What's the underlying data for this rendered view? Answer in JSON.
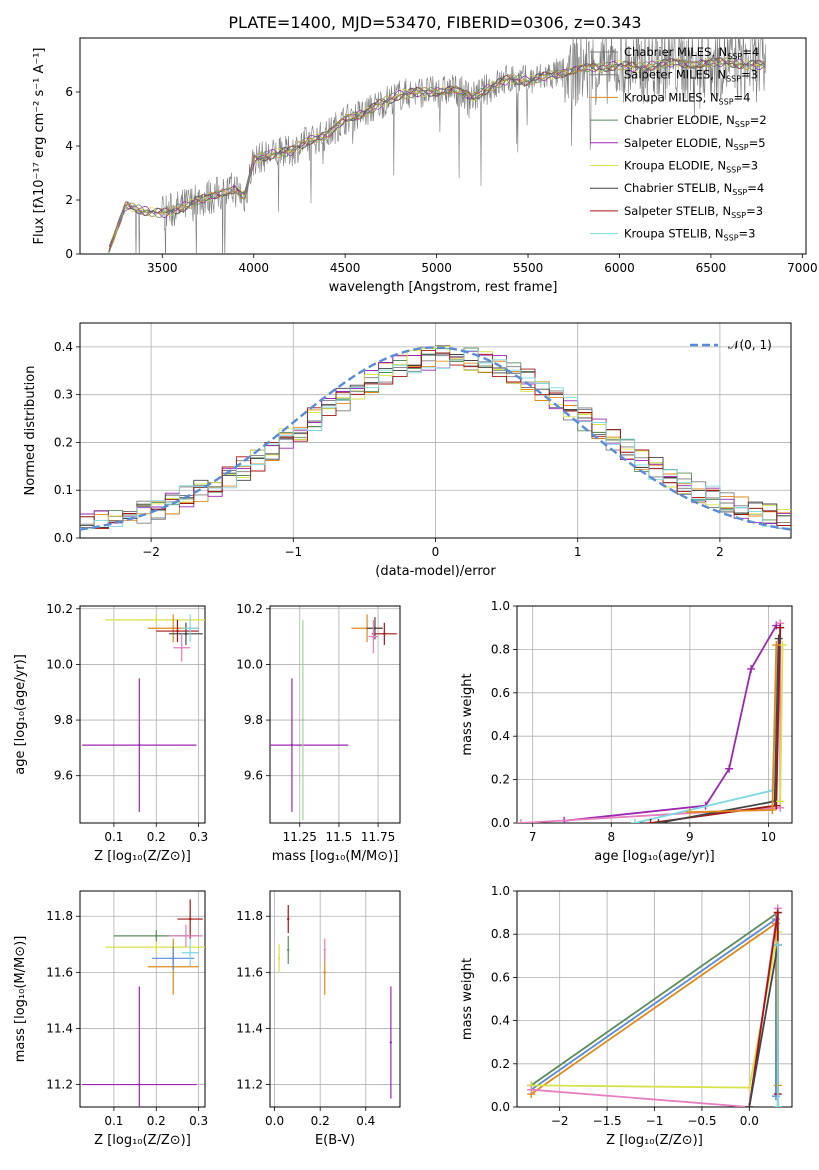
{
  "title": "PLATE=1400, MJD=53470, FIBERID=0306, z=0.343",
  "legend_spectrum": [
    {
      "model": "Chabrier MILES",
      "n": "4",
      "color": "#7b7b7b"
    },
    {
      "model": "Salpeter MILES",
      "n": "3",
      "color": "#7b7b7b"
    },
    {
      "model": "Kroupa MILES",
      "n": "4",
      "color": "#e08a1c"
    },
    {
      "model": "Chabrier ELODIE",
      "n": "2",
      "color": "#5b8c5a"
    },
    {
      "model": "Salpeter ELODIE",
      "n": "5",
      "color": "#9b27b0"
    },
    {
      "model": "Kroupa ELODIE",
      "n": "3",
      "color": "#d8e24a"
    },
    {
      "model": "Chabrier STELIB",
      "n": "4",
      "color": "#444444"
    },
    {
      "model": "Salpeter STELIB",
      "n": "3",
      "color": "#a31515"
    },
    {
      "model": "Kroupa STELIB",
      "n": "3",
      "color": "#7fd8e0"
    }
  ],
  "legend_normal": "𝒩(0, 1)",
  "chart_data": [
    {
      "id": "spectrum",
      "type": "line",
      "xlabel": "wavelength [Angstrom, rest frame]",
      "ylabel": "Flux [fλ10⁻¹⁷ erg cm⁻² s⁻¹ A⁻¹]",
      "xlim": [
        3050,
        7020
      ],
      "ylim": [
        0,
        8
      ],
      "xticks": [
        3500,
        4000,
        4500,
        5000,
        5500,
        6000,
        6500,
        7000
      ],
      "yticks": [
        0,
        2,
        4,
        6
      ],
      "continuum_x": [
        3200,
        3300,
        3400,
        3500,
        3600,
        3700,
        3800,
        3900,
        3950,
        4000,
        4100,
        4200,
        4300,
        4400,
        4500,
        4600,
        4700,
        4800,
        4900,
        5000,
        5100,
        5200,
        5300,
        5400,
        5500,
        5600,
        5700,
        5800,
        5900,
        6000,
        6100,
        6200,
        6300,
        6400,
        6500,
        6600,
        6700,
        6800
      ],
      "continuum_y": [
        0.0,
        1.8,
        1.6,
        1.5,
        1.7,
        2.0,
        2.2,
        2.4,
        2.1,
        3.5,
        3.7,
        3.8,
        4.2,
        4.4,
        5.0,
        5.2,
        5.6,
        5.9,
        6.0,
        6.0,
        6.1,
        5.8,
        6.2,
        6.5,
        6.4,
        6.6,
        6.7,
        6.9,
        6.9,
        7.0,
        6.9,
        7.0,
        7.1,
        7.0,
        7.1,
        7.1,
        7.0,
        7.0
      ]
    },
    {
      "id": "residuals",
      "type": "histogram",
      "xlabel": "(data-model)/error",
      "ylabel": "Normed distribution",
      "xlim": [
        -2.5,
        2.5
      ],
      "ylim": [
        0,
        0.45
      ],
      "xticks": [
        -2,
        -1,
        0,
        1,
        2
      ],
      "yticks": [
        0.0,
        0.1,
        0.2,
        0.3,
        0.4
      ],
      "normal_curve": {
        "mean": 0,
        "sigma": 1,
        "color": "#5b8bd8"
      }
    },
    {
      "id": "age_vs_Z",
      "type": "scatter",
      "xlabel": "Z [log₁₀(Z/Z⊙)]",
      "ylabel": "age  [log₁₀(age/yr)]",
      "xlim": [
        0.02,
        0.315
      ],
      "ylim": [
        9.43,
        10.21
      ],
      "xticks": [
        0.1,
        0.2,
        0.3
      ],
      "yticks": [
        9.6,
        9.8,
        10.0,
        10.2
      ],
      "points": [
        {
          "x": 0.16,
          "y": 9.71,
          "ex": 0.135,
          "ey": 0.24,
          "color": "#9b27b0"
        },
        {
          "x": 0.2,
          "y": 10.16,
          "ex": 0.12,
          "ey": 0.02,
          "color": "#d8e24a"
        },
        {
          "x": 0.24,
          "y": 10.13,
          "ex": 0.06,
          "ey": 0.05,
          "color": "#e08a1c"
        },
        {
          "x": 0.25,
          "y": 10.12,
          "ex": 0.05,
          "ey": 0.04,
          "color": "#a31515"
        },
        {
          "x": 0.27,
          "y": 10.11,
          "ex": 0.04,
          "ey": 0.04,
          "color": "#444444"
        },
        {
          "x": 0.28,
          "y": 10.13,
          "ex": 0.02,
          "ey": 0.05,
          "color": "#7fd8e0"
        },
        {
          "x": 0.26,
          "y": 10.06,
          "ex": 0.02,
          "ey": 0.05,
          "color": "#e67fbf"
        }
      ]
    },
    {
      "id": "age_vs_mass",
      "type": "scatter",
      "xlabel": "mass [log₁₀(M/M⊙)]",
      "ylabel": "",
      "xlim": [
        11.06,
        11.89
      ],
      "ylim": [
        9.43,
        10.21
      ],
      "xticks": [
        11.25,
        11.5,
        11.75
      ],
      "yticks": [
        9.6,
        9.8,
        10.0,
        10.2
      ],
      "points": [
        {
          "x": 11.2,
          "y": 9.71,
          "ex": 0.36,
          "ey": 0.24,
          "color": "#9b27b0"
        },
        {
          "x": 11.68,
          "y": 10.13,
          "ex": 0.1,
          "ey": 0.05,
          "color": "#e08a1c"
        },
        {
          "x": 11.79,
          "y": 10.11,
          "ex": 0.08,
          "ey": 0.04,
          "color": "#a31515"
        },
        {
          "x": 11.73,
          "y": 10.13,
          "ex": 0.05,
          "ey": 0.04,
          "color": "#444444"
        },
        {
          "x": 11.27,
          "y": 9.8,
          "ex": 0.01,
          "ey": 0.36,
          "color": "#9fd49e"
        },
        {
          "x": 11.72,
          "y": 10.1,
          "ex": 0.03,
          "ey": 0.06,
          "color": "#e67fbf"
        }
      ]
    },
    {
      "id": "mass_weight_vs_age",
      "type": "line",
      "xlabel": "age  [log₁₀(age/yr)]",
      "ylabel": "mass weight",
      "xlim": [
        6.8,
        10.3
      ],
      "ylim": [
        0,
        1.0
      ],
      "xticks": [
        7,
        8,
        9,
        10
      ],
      "yticks": [
        0.0,
        0.2,
        0.4,
        0.6,
        0.8,
        1.0
      ],
      "series": [
        {
          "x": [
            7.4,
            9.2,
            9.5,
            9.78,
            10.1
          ],
          "y": [
            0.01,
            0.08,
            0.25,
            0.71,
            0.91
          ],
          "color": "#9b27b0"
        },
        {
          "x": [
            6.85,
            10.15,
            10.15
          ],
          "y": [
            0.0,
            0.07,
            0.92
          ],
          "color": "#e67fbf"
        },
        {
          "x": [
            8.3,
            10.05,
            10.12
          ],
          "y": [
            0.0,
            0.15,
            0.8
          ],
          "color": "#7fd8e0"
        },
        {
          "x": [
            8.5,
            10.1,
            10.15
          ],
          "y": [
            0.0,
            0.08,
            0.9
          ],
          "color": "#a31515"
        },
        {
          "x": [
            8.6,
            10.08,
            10.13
          ],
          "y": [
            0.0,
            0.1,
            0.85
          ],
          "color": "#444444"
        },
        {
          "x": [
            10.15,
            10.18
          ],
          "y": [
            0.1,
            0.82
          ],
          "color": "#d8e24a"
        },
        {
          "x": [
            9.0,
            10.05,
            10.1
          ],
          "y": [
            0.05,
            0.06,
            0.82
          ],
          "color": "#e08a1c"
        }
      ]
    },
    {
      "id": "mass_vs_Z",
      "type": "scatter",
      "xlabel": "Z [log₁₀(Z/Z⊙)]",
      "ylabel": "mass [log₁₀(M/M⊙)]",
      "xlim": [
        0.02,
        0.315
      ],
      "ylim": [
        11.12,
        11.89
      ],
      "xticks": [
        0.1,
        0.2,
        0.3
      ],
      "yticks": [
        11.2,
        11.4,
        11.6,
        11.8
      ],
      "points": [
        {
          "x": 0.16,
          "y": 11.2,
          "ex": 0.135,
          "ey": 0.35,
          "color": "#9b27b0"
        },
        {
          "x": 0.2,
          "y": 11.69,
          "ex": 0.12,
          "ey": 0.02,
          "color": "#d8e24a"
        },
        {
          "x": 0.2,
          "y": 11.73,
          "ex": 0.1,
          "ey": 0.02,
          "color": "#5b8c5a"
        },
        {
          "x": 0.24,
          "y": 11.62,
          "ex": 0.06,
          "ey": 0.1,
          "color": "#e08a1c"
        },
        {
          "x": 0.28,
          "y": 11.79,
          "ex": 0.03,
          "ey": 0.07,
          "color": "#a31515"
        },
        {
          "x": 0.24,
          "y": 11.65,
          "ex": 0.05,
          "ey": 0.04,
          "color": "#5b8bd8"
        },
        {
          "x": 0.27,
          "y": 11.73,
          "ex": 0.04,
          "ey": 0.04,
          "color": "#e67fbf"
        },
        {
          "x": 0.28,
          "y": 11.67,
          "ex": 0.02,
          "ey": 0.05,
          "color": "#7fd8e0"
        }
      ]
    },
    {
      "id": "mass_vs_EBV",
      "type": "scatter",
      "xlabel": "E(B-V)",
      "ylabel": "",
      "xlim": [
        -0.02,
        0.55
      ],
      "ylim": [
        11.12,
        11.89
      ],
      "xticks": [
        0.0,
        0.2,
        0.4
      ],
      "yticks": [
        11.2,
        11.4,
        11.6,
        11.8
      ],
      "points": [
        {
          "x": 0.51,
          "y": 11.35,
          "ex": 0,
          "ey": 0.2,
          "color": "#9b27b0"
        },
        {
          "x": 0.02,
          "y": 11.65,
          "ex": 0,
          "ey": 0.05,
          "color": "#d8e24a"
        },
        {
          "x": 0.06,
          "y": 11.68,
          "ex": 0,
          "ey": 0.05,
          "color": "#5b8c5a"
        },
        {
          "x": 0.06,
          "y": 11.79,
          "ex": 0,
          "ey": 0.05,
          "color": "#a31515"
        },
        {
          "x": 0.22,
          "y": 11.6,
          "ex": 0,
          "ey": 0.08,
          "color": "#e08a1c"
        },
        {
          "x": 0.22,
          "y": 11.68,
          "ex": 0,
          "ey": 0.04,
          "color": "#e67fbf"
        }
      ]
    },
    {
      "id": "mass_weight_vs_Z",
      "type": "line",
      "xlabel": "Z [log₁₀(Z/Z⊙)]",
      "ylabel": "mass weight",
      "xlim": [
        -2.45,
        0.45
      ],
      "ylim": [
        0,
        1.0
      ],
      "xticks": [
        -2.0,
        -1.5,
        -1.0,
        -0.5,
        0.0
      ],
      "yticks": [
        0.0,
        0.2,
        0.4,
        0.6,
        0.8,
        1.0
      ],
      "series": [
        {
          "x": [
            -2.3,
            0.3,
            0.3
          ],
          "y": [
            0.1,
            0.9,
            0.0
          ],
          "color": "#5b8c5a"
        },
        {
          "x": [
            -2.3,
            0.28,
            0.28
          ],
          "y": [
            0.08,
            0.87,
            0.05
          ],
          "color": "#5b8bd8"
        },
        {
          "x": [
            -2.3,
            0.28,
            0.3
          ],
          "y": [
            0.06,
            0.85,
            0.1
          ],
          "color": "#e08a1c"
        },
        {
          "x": [
            -2.3,
            0.0,
            0.3
          ],
          "y": [
            0.1,
            0.09,
            0.81
          ],
          "color": "#d8e24a"
        },
        {
          "x": [
            -2.3,
            0.0,
            0.3
          ],
          "y": [
            0.08,
            0.0,
            0.92
          ],
          "color": "#e67fbf"
        },
        {
          "x": [
            0.0,
            0.3,
            0.3
          ],
          "y": [
            0.0,
            0.9,
            0.06
          ],
          "color": "#a31515"
        },
        {
          "x": [
            0.0,
            0.3
          ],
          "y": [
            0.0,
            0.75
          ],
          "color": "#444444"
        },
        {
          "x": [
            0.3,
            0.3
          ],
          "y": [
            0.0,
            0.75
          ],
          "color": "#7fd8e0"
        }
      ]
    }
  ]
}
